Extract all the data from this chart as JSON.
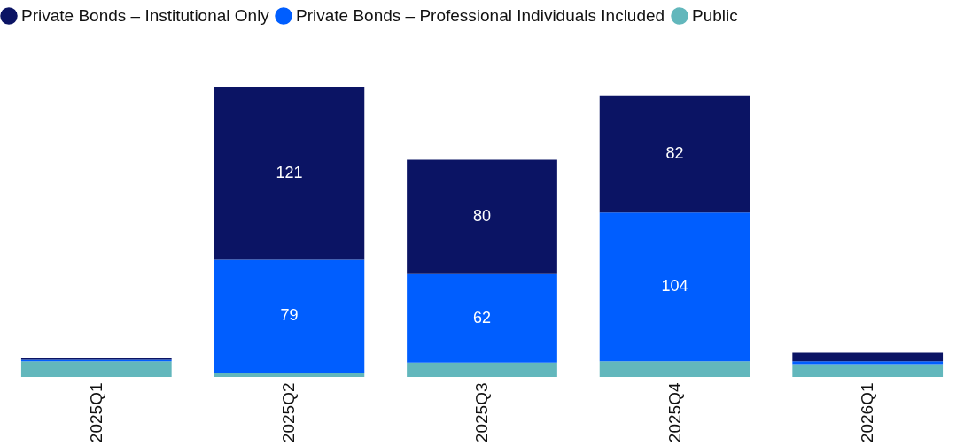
{
  "chart_data": {
    "type": "bar",
    "stacked": true,
    "legend": "top left",
    "categories": [
      "2025Q1",
      "2025Q2",
      "2025Q3",
      "2025Q4",
      "2026Q1"
    ],
    "series": [
      {
        "name": "Public",
        "color": "#62b7bc",
        "values": [
          11,
          3,
          10,
          11,
          9
        ],
        "value_labels": [
          null,
          null,
          null,
          null,
          null
        ]
      },
      {
        "name": "Private Bonds – Professional Individuals Included",
        "color": "#005eff",
        "values": [
          1,
          79,
          62,
          104,
          2
        ],
        "value_labels": [
          null,
          "79",
          "62",
          "104",
          null
        ]
      },
      {
        "name": "Private Bonds – Institutional Only",
        "color": "#0b1464",
        "values": [
          1,
          121,
          80,
          82,
          6
        ],
        "value_labels": [
          null,
          "121",
          "80",
          "82",
          null
        ]
      }
    ]
  }
}
